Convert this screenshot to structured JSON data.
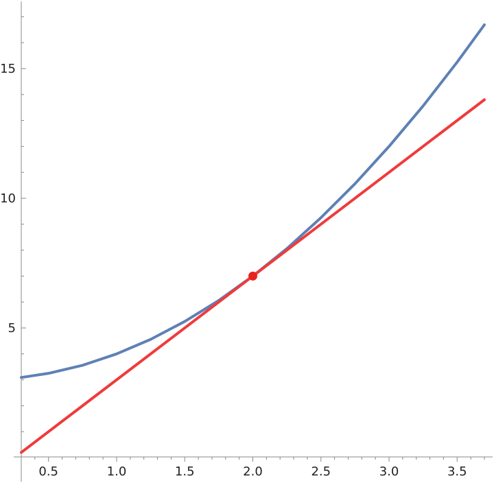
{
  "chart_data": {
    "type": "line",
    "title": "",
    "xlabel": "",
    "ylabel": "",
    "xlim": [
      0.3,
      3.7
    ],
    "ylim": [
      0,
      17.5
    ],
    "grid": false,
    "legend": "none",
    "x_ticks": [
      {
        "value": 0.5,
        "label": "0.5"
      },
      {
        "value": 1.0,
        "label": "1.0"
      },
      {
        "value": 1.5,
        "label": "1.5"
      },
      {
        "value": 2.0,
        "label": "2.0"
      },
      {
        "value": 2.5,
        "label": "2.5"
      },
      {
        "value": 3.0,
        "label": "3.0"
      },
      {
        "value": 3.5,
        "label": "3.5"
      }
    ],
    "y_ticks": [
      {
        "value": 5,
        "label": "5"
      },
      {
        "value": 10,
        "label": "10"
      },
      {
        "value": 15,
        "label": "15"
      }
    ],
    "series": [
      {
        "color": "#5e81b5",
        "x": [
          0.3,
          0.5,
          0.75,
          1.0,
          1.25,
          1.5,
          1.75,
          2.0,
          2.25,
          2.5,
          2.75,
          3.0,
          3.25,
          3.5,
          3.7
        ],
        "y": [
          3.09,
          3.25,
          3.56,
          4.0,
          4.56,
          5.25,
          6.06,
          7.0,
          8.06,
          9.25,
          10.56,
          12.0,
          13.56,
          15.25,
          16.69
        ]
      },
      {
        "color": "#ef3b3b",
        "x": [
          0.3,
          3.7
        ],
        "y": [
          0.2,
          13.8
        ]
      }
    ],
    "points": [
      {
        "x": 2.0,
        "y": 7.0,
        "color": "#e8221e"
      }
    ]
  }
}
